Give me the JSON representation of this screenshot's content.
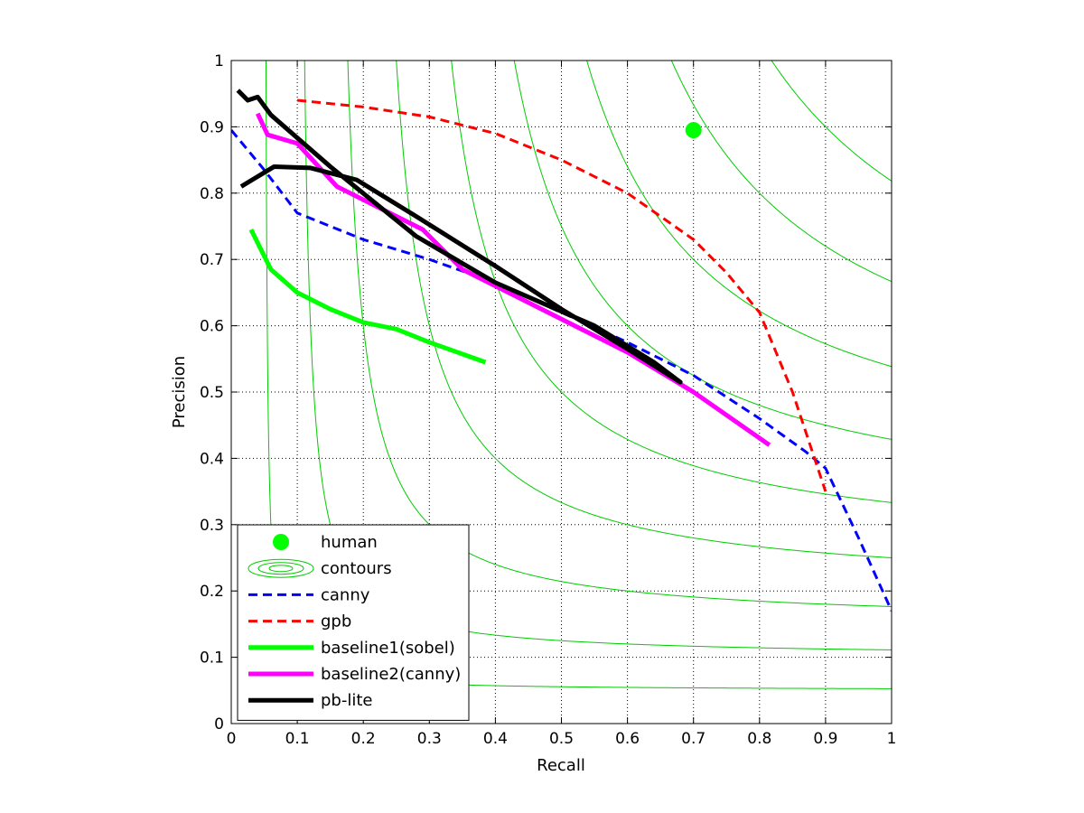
{
  "chart_data": {
    "type": "line",
    "xlabel": "Recall",
    "ylabel": "Precision",
    "xlim": [
      0,
      1
    ],
    "ylim": [
      0,
      1
    ],
    "grid": true,
    "x_ticks": [
      "0",
      "0.1",
      "0.2",
      "0.3",
      "0.4",
      "0.5",
      "0.6",
      "0.7",
      "0.8",
      "0.9",
      "1"
    ],
    "y_ticks": [
      "0",
      "0.1",
      "0.2",
      "0.3",
      "0.4",
      "0.5",
      "0.6",
      "0.7",
      "0.8",
      "0.9",
      "1"
    ],
    "legend_position": "bottom-left",
    "contour_levels": [
      0.1,
      0.2,
      0.3,
      0.4,
      0.5,
      0.6,
      0.7,
      0.8,
      0.9
    ],
    "series": [
      {
        "name": "human",
        "kind": "point",
        "color": "#00ff00",
        "points": [
          [
            0.7,
            0.895
          ]
        ]
      },
      {
        "name": "contours",
        "kind": "contours",
        "color": "#00cc00"
      },
      {
        "name": "canny",
        "kind": "line",
        "style": "dashed",
        "color": "#0000ff",
        "points": [
          [
            0.0,
            0.895
          ],
          [
            0.05,
            0.835
          ],
          [
            0.1,
            0.77
          ],
          [
            0.2,
            0.73
          ],
          [
            0.3,
            0.7
          ],
          [
            0.4,
            0.665
          ],
          [
            0.5,
            0.62
          ],
          [
            0.6,
            0.575
          ],
          [
            0.7,
            0.525
          ],
          [
            0.8,
            0.46
          ],
          [
            0.87,
            0.41
          ],
          [
            0.9,
            0.385
          ],
          [
            0.95,
            0.28
          ],
          [
            1.0,
            0.17
          ]
        ]
      },
      {
        "name": "gpb",
        "kind": "line",
        "style": "dashed",
        "color": "#ff0000",
        "points": [
          [
            0.1,
            0.94
          ],
          [
            0.2,
            0.93
          ],
          [
            0.3,
            0.915
          ],
          [
            0.4,
            0.89
          ],
          [
            0.5,
            0.85
          ],
          [
            0.6,
            0.8
          ],
          [
            0.7,
            0.73
          ],
          [
            0.75,
            0.68
          ],
          [
            0.8,
            0.62
          ],
          [
            0.85,
            0.5
          ],
          [
            0.9,
            0.35
          ]
        ]
      },
      {
        "name": "baseline1(sobel)",
        "kind": "line",
        "style": "solid",
        "color": "#00ff00",
        "points": [
          [
            0.03,
            0.745
          ],
          [
            0.06,
            0.685
          ],
          [
            0.1,
            0.65
          ],
          [
            0.15,
            0.625
          ],
          [
            0.2,
            0.605
          ],
          [
            0.25,
            0.595
          ],
          [
            0.3,
            0.575
          ],
          [
            0.385,
            0.545
          ]
        ]
      },
      {
        "name": "baseline2(canny)",
        "kind": "line",
        "style": "solid",
        "color": "#ff00ff",
        "points": [
          [
            0.04,
            0.92
          ],
          [
            0.055,
            0.888
          ],
          [
            0.1,
            0.875
          ],
          [
            0.16,
            0.81
          ],
          [
            0.22,
            0.78
          ],
          [
            0.29,
            0.745
          ],
          [
            0.35,
            0.685
          ],
          [
            0.5,
            0.61
          ],
          [
            0.6,
            0.56
          ],
          [
            0.7,
            0.5
          ],
          [
            0.815,
            0.42
          ]
        ]
      },
      {
        "name": "pb-lite",
        "kind": "line",
        "style": "solid",
        "color": "#000000",
        "points": [
          [
            0.015,
            0.81
          ],
          [
            0.035,
            0.822
          ],
          [
            0.065,
            0.84
          ],
          [
            0.12,
            0.838
          ],
          [
            0.19,
            0.82
          ],
          [
            0.28,
            0.765
          ],
          [
            0.4,
            0.69
          ],
          [
            0.5,
            0.625
          ],
          [
            0.6,
            0.565
          ],
          [
            0.68,
            0.515
          ],
          [
            0.64,
            0.545
          ],
          [
            0.55,
            0.6
          ],
          [
            0.4,
            0.665
          ],
          [
            0.28,
            0.735
          ],
          [
            0.15,
            0.84
          ],
          [
            0.06,
            0.918
          ],
          [
            0.04,
            0.945
          ],
          [
            0.025,
            0.94
          ],
          [
            0.01,
            0.955
          ]
        ]
      }
    ]
  }
}
